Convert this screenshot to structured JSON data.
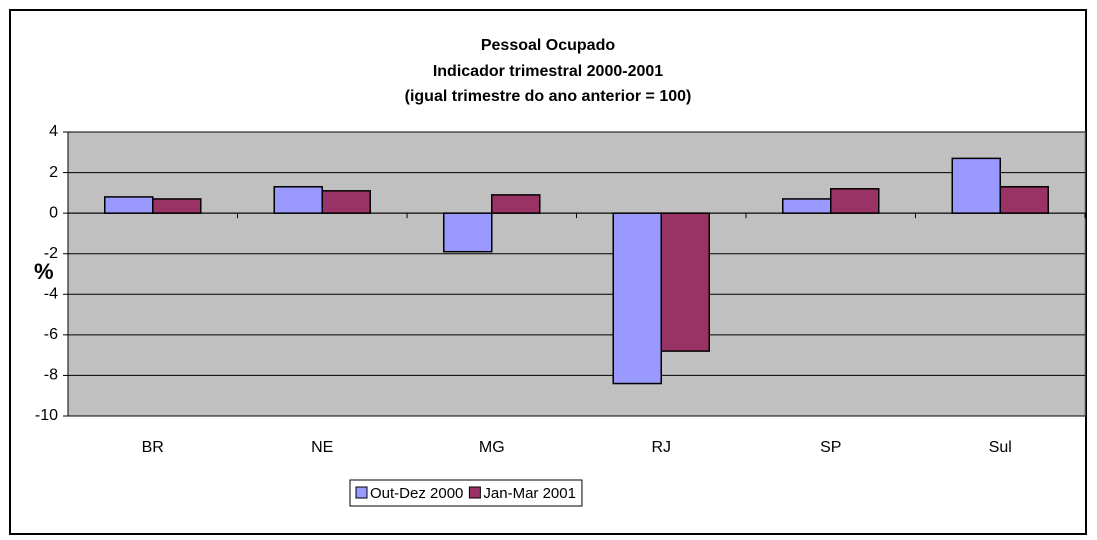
{
  "chart_data": {
    "type": "bar",
    "title": "Pessoal Ocupado",
    "subtitle": [
      "Indicador trimestral 2000-2001",
      "(igual trimestre do ano anterior = 100)"
    ],
    "y_label": "%",
    "categories": [
      "BR",
      "NE",
      "MG",
      "RJ",
      "SP",
      "Sul"
    ],
    "series": [
      {
        "name": "Out-Dez 2000",
        "color": "#9999ff",
        "values": [
          0.8,
          1.3,
          -1.9,
          -8.4,
          0.7,
          2.7
        ]
      },
      {
        "name": "Jan-Mar 2001",
        "color": "#993366",
        "values": [
          0.7,
          1.1,
          0.9,
          -6.8,
          1.2,
          1.3
        ]
      }
    ],
    "ylim": [
      -10,
      4
    ],
    "yticks": [
      -10,
      -8,
      -6,
      -4,
      -2,
      0,
      2,
      4
    ],
    "grid": true,
    "legend": "bottom"
  }
}
